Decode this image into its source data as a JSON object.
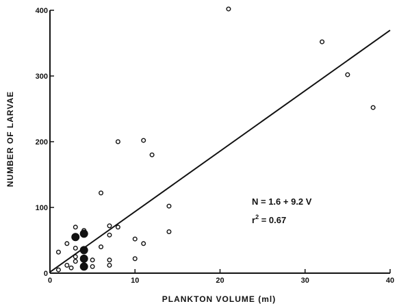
{
  "chart_data": {
    "type": "scatter",
    "title": "",
    "xlabel": "PLANKTON VOLUME (ml)",
    "ylabel": "NUMBER OF LARVAE",
    "xlim": [
      0,
      40
    ],
    "ylim": [
      0,
      400
    ],
    "x_ticks": [
      0,
      10,
      20,
      30,
      40
    ],
    "y_ticks": [
      0,
      100,
      200,
      300,
      400
    ],
    "grid": false,
    "legend": "none",
    "series": [
      {
        "marker": "open-circle",
        "points": [
          [
            1,
            5
          ],
          [
            1,
            32
          ],
          [
            2,
            12
          ],
          [
            2,
            45
          ],
          [
            2.5,
            8
          ],
          [
            3,
            18
          ],
          [
            3,
            25
          ],
          [
            3,
            38
          ],
          [
            3,
            70
          ],
          [
            4,
            12
          ],
          [
            4,
            36
          ],
          [
            4,
            65
          ],
          [
            5,
            10
          ],
          [
            5,
            20
          ],
          [
            6,
            40
          ],
          [
            6,
            122
          ],
          [
            7,
            12
          ],
          [
            7,
            20
          ],
          [
            7,
            58
          ],
          [
            7,
            72
          ],
          [
            8,
            70
          ],
          [
            8,
            200
          ],
          [
            10,
            22
          ],
          [
            10,
            52
          ],
          [
            11,
            45
          ],
          [
            11,
            202
          ],
          [
            12,
            180
          ],
          [
            14,
            63
          ],
          [
            14,
            102
          ],
          [
            21,
            402
          ],
          [
            32,
            352
          ],
          [
            35,
            302
          ],
          [
            38,
            252
          ]
        ]
      },
      {
        "marker": "filled-circle",
        "points": [
          [
            3,
            55
          ],
          [
            4,
            60
          ],
          [
            4,
            35
          ],
          [
            4,
            22
          ],
          [
            4,
            10
          ]
        ]
      }
    ],
    "regression_line": {
      "intercept": 1.6,
      "slope": 9.2,
      "x_range": [
        0,
        40
      ]
    },
    "annotations": {
      "equation": "N = 1.6 + 9.2 V",
      "r2_prefix": "r",
      "r2_exp": "2",
      "r2_value": " = 0.67"
    }
  }
}
